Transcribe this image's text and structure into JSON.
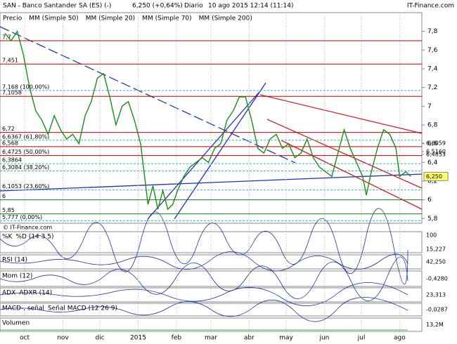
{
  "header": {
    "title": "SAN - Banco Santander SA (ES) (-)",
    "quote": "6,250 (+0,64%)",
    "period": "Diario",
    "timestamp": "10 ago 2015 12:14 (11:14)",
    "brand": "IT-Finance.com",
    "watermark": "© IT-Finance.com"
  },
  "legend": [
    {
      "name": "Precio",
      "color": "#000000"
    },
    {
      "name": "MM (Simple 50)",
      "color": "#9aaad8"
    },
    {
      "name": "MM (Simple 20)",
      "color": "#c00000"
    },
    {
      "name": "MM (Simple 70)",
      "color": "#1f3fb0"
    },
    {
      "name": "MM (Simple 200)",
      "color": "#1a7a3a"
    }
  ],
  "chart_data": {
    "type": "line",
    "x": [
      0,
      5,
      10,
      15,
      20,
      25,
      30,
      35,
      40,
      45,
      50,
      55,
      60,
      65,
      70,
      75,
      80,
      85,
      90,
      95,
      100,
      105,
      110,
      116,
      120,
      124,
      128,
      132,
      136,
      140,
      145,
      150,
      155,
      160,
      165,
      170,
      175,
      180,
      185,
      190,
      195,
      200,
      205,
      210,
      215,
      220,
      225,
      230,
      235,
      240,
      245,
      250,
      255,
      260,
      265,
      270,
      275,
      280,
      285,
      290,
      293,
      297,
      302,
      307,
      312,
      317,
      320,
      325,
      329
    ],
    "series": [
      {
        "name": "Precio",
        "color": "#1a8c1a",
        "values": [
          7.78,
          7.7,
          7.8,
          7.55,
          7.2,
          6.95,
          6.85,
          6.7,
          6.9,
          6.75,
          6.65,
          6.7,
          6.6,
          6.9,
          7.05,
          7.3,
          7.35,
          7.1,
          6.8,
          7.0,
          7.05,
          6.85,
          6.6,
          5.95,
          6.15,
          5.9,
          6.1,
          5.9,
          5.95,
          6.1,
          6.25,
          6.35,
          6.4,
          6.45,
          6.4,
          6.55,
          6.6,
          6.85,
          6.95,
          7.1,
          7.1,
          6.85,
          6.55,
          6.5,
          6.65,
          6.7,
          6.55,
          6.6,
          6.45,
          6.5,
          6.65,
          6.45,
          6.35,
          6.3,
          6.25,
          6.5,
          6.75,
          6.55,
          6.4,
          6.25,
          6.05,
          6.3,
          6.55,
          6.75,
          6.7,
          6.55,
          6.25,
          6.3,
          6.25
        ]
      }
    ],
    "xlim": [
      -4,
      338
    ],
    "xticks": [
      {
        "value": 16,
        "label": "oct"
      },
      {
        "value": 47,
        "label": "nov"
      },
      {
        "value": 77,
        "label": "dic"
      },
      {
        "value": 108,
        "label": "2015"
      },
      {
        "value": 139,
        "label": "feb"
      },
      {
        "value": 167,
        "label": "mar"
      },
      {
        "value": 198,
        "label": "abr"
      },
      {
        "value": 228,
        "label": "may"
      },
      {
        "value": 259,
        "label": "jun"
      },
      {
        "value": 289,
        "label": "jul"
      },
      {
        "value": 320,
        "label": "ago"
      }
    ],
    "ylim": [
      5.75,
      8.0
    ],
    "yticks": [
      {
        "value": 5.8,
        "label": "5,8"
      },
      {
        "value": 6,
        "label": "6"
      },
      {
        "value": 6.2,
        "label": "6,2"
      },
      {
        "value": 6.4,
        "label": "6,4"
      },
      {
        "value": 6.6,
        "label": "6,6"
      },
      {
        "value": 6.8,
        "label": "6,8"
      },
      {
        "value": 7,
        "label": "7"
      },
      {
        "value": 7.2,
        "label": "7,2"
      },
      {
        "value": 7.4,
        "label": "7,4"
      },
      {
        "value": 7.6,
        "label": "7,6"
      },
      {
        "value": 7.8,
        "label": "7,8"
      }
    ],
    "levels": [
      {
        "value": 7.7,
        "label": "7,7",
        "color": "#c00000"
      },
      {
        "value": 7.451,
        "label": "7,451",
        "color": "#c00000"
      },
      {
        "value": 7.168,
        "label": "7,168 (100,00%)",
        "color": "#40b0c0"
      },
      {
        "value": 7.1058,
        "label": "7,1058",
        "color": "#c00000"
      },
      {
        "value": 6.72,
        "label": "6,72",
        "color": "#c00000"
      },
      {
        "value": 6.6367,
        "label": "6,6367 (61,80%)",
        "color": "#40b0c0"
      },
      {
        "value": 6.568,
        "label": "6,568",
        "color": "#c00000"
      },
      {
        "value": 6.4725,
        "label": "6,4725 (50,00%)",
        "color": "#c00000"
      },
      {
        "value": 6.3864,
        "label": "6,3864",
        "color": "#40b0c0"
      },
      {
        "value": 6.3084,
        "label": "6,3084 (38,20%)",
        "color": "#40b0c0"
      },
      {
        "value": 6.1053,
        "label": "6,1053 (23,60%)",
        "color": "#40b0c0"
      },
      {
        "value": 6,
        "label": "6",
        "color": "#1a7a1a"
      },
      {
        "value": 5.85,
        "label": "5,85",
        "color": "#1a7a1a"
      },
      {
        "value": 5.777,
        "label": "5,777 (0,00%)",
        "color": "#40b0c0"
      }
    ],
    "right_labels": [
      {
        "value": 6.6059,
        "label": "6,6059"
      },
      {
        "value": 6.516,
        "label": "6,5160"
      },
      {
        "value": 6.4853,
        "label": "6,4853"
      },
      {
        "value": 6.25,
        "label": "6,250"
      }
    ]
  },
  "panels": [
    {
      "name": "%K",
      "legend": "%D (14 3 5)",
      "labels": [
        "100",
        "15,227"
      ]
    },
    {
      "name": "RSI (14)",
      "legend": "",
      "labels": [
        "42,250"
      ]
    },
    {
      "name": "Mom (12)",
      "legend": "",
      "labels": [
        "-0,4280"
      ]
    },
    {
      "name": "ADX",
      "legend": "ADXR (14)",
      "labels": [
        "23,313"
      ]
    },
    {
      "name": "MACD-, señal",
      "legend": "Señal  MACD (12 26 9)",
      "labels": [
        "-0,0287"
      ]
    },
    {
      "name": "Volumen",
      "legend": "",
      "labels": [
        "13,2M"
      ]
    }
  ]
}
